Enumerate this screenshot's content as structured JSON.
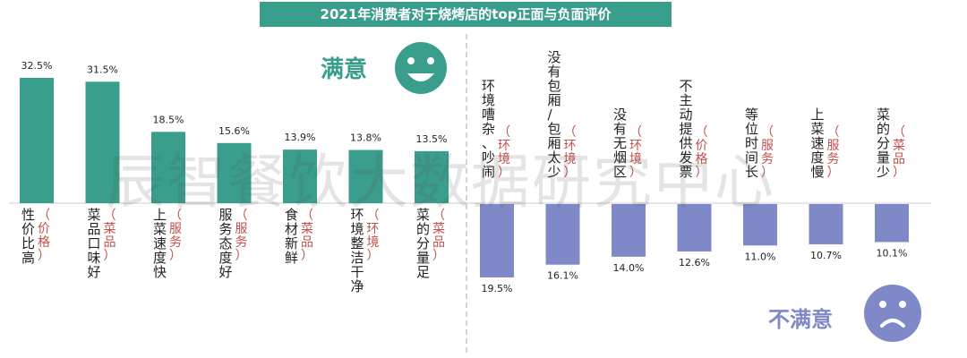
{
  "title": "2021年消费者对于烧烤店的top正面与负面评价",
  "satisfied_label": "满意",
  "unsatisfied_label": "不满意",
  "watermark": "辰智餐饮大数据研究中心",
  "colors": {
    "positive": "#3a9e8c",
    "negative": "#8089c8",
    "category_text": "#c0504d"
  },
  "icons": {
    "positive": "smiley-face-icon",
    "negative": "frowning-face-icon"
  },
  "chart_data": [
    {
      "type": "bar",
      "series_name": "满意",
      "categories": [
        "性价比高",
        "菜品口味好",
        "上菜速度快",
        "服务态度好",
        "食材新鲜",
        "环境整洁干净",
        "菜的分量足"
      ],
      "tags": [
        "价格",
        "菜品",
        "服务",
        "服务",
        "菜品",
        "环境",
        "菜品"
      ],
      "values": [
        32.5,
        31.5,
        18.5,
        15.6,
        13.9,
        13.8,
        13.5
      ],
      "labels": [
        "32.5%",
        "31.5%",
        "18.5%",
        "15.6%",
        "13.9%",
        "13.8%",
        "13.5%"
      ]
    },
    {
      "type": "bar",
      "series_name": "不满意",
      "categories": [
        "环境嘈杂、吵闹",
        "没有包厢/包厢太少",
        "没有无烟区",
        "不主动提供发票",
        "等位时间长",
        "上菜速度慢",
        "菜的分量少"
      ],
      "tags": [
        "环境",
        "环境",
        "环境",
        "价格",
        "服务",
        "服务",
        "菜品"
      ],
      "values": [
        19.5,
        16.1,
        14.0,
        12.6,
        11.0,
        10.7,
        10.1
      ],
      "labels": [
        "19.5%",
        "16.1%",
        "14.0%",
        "12.6%",
        "11.0%",
        "10.7%",
        "10.1%"
      ]
    }
  ]
}
